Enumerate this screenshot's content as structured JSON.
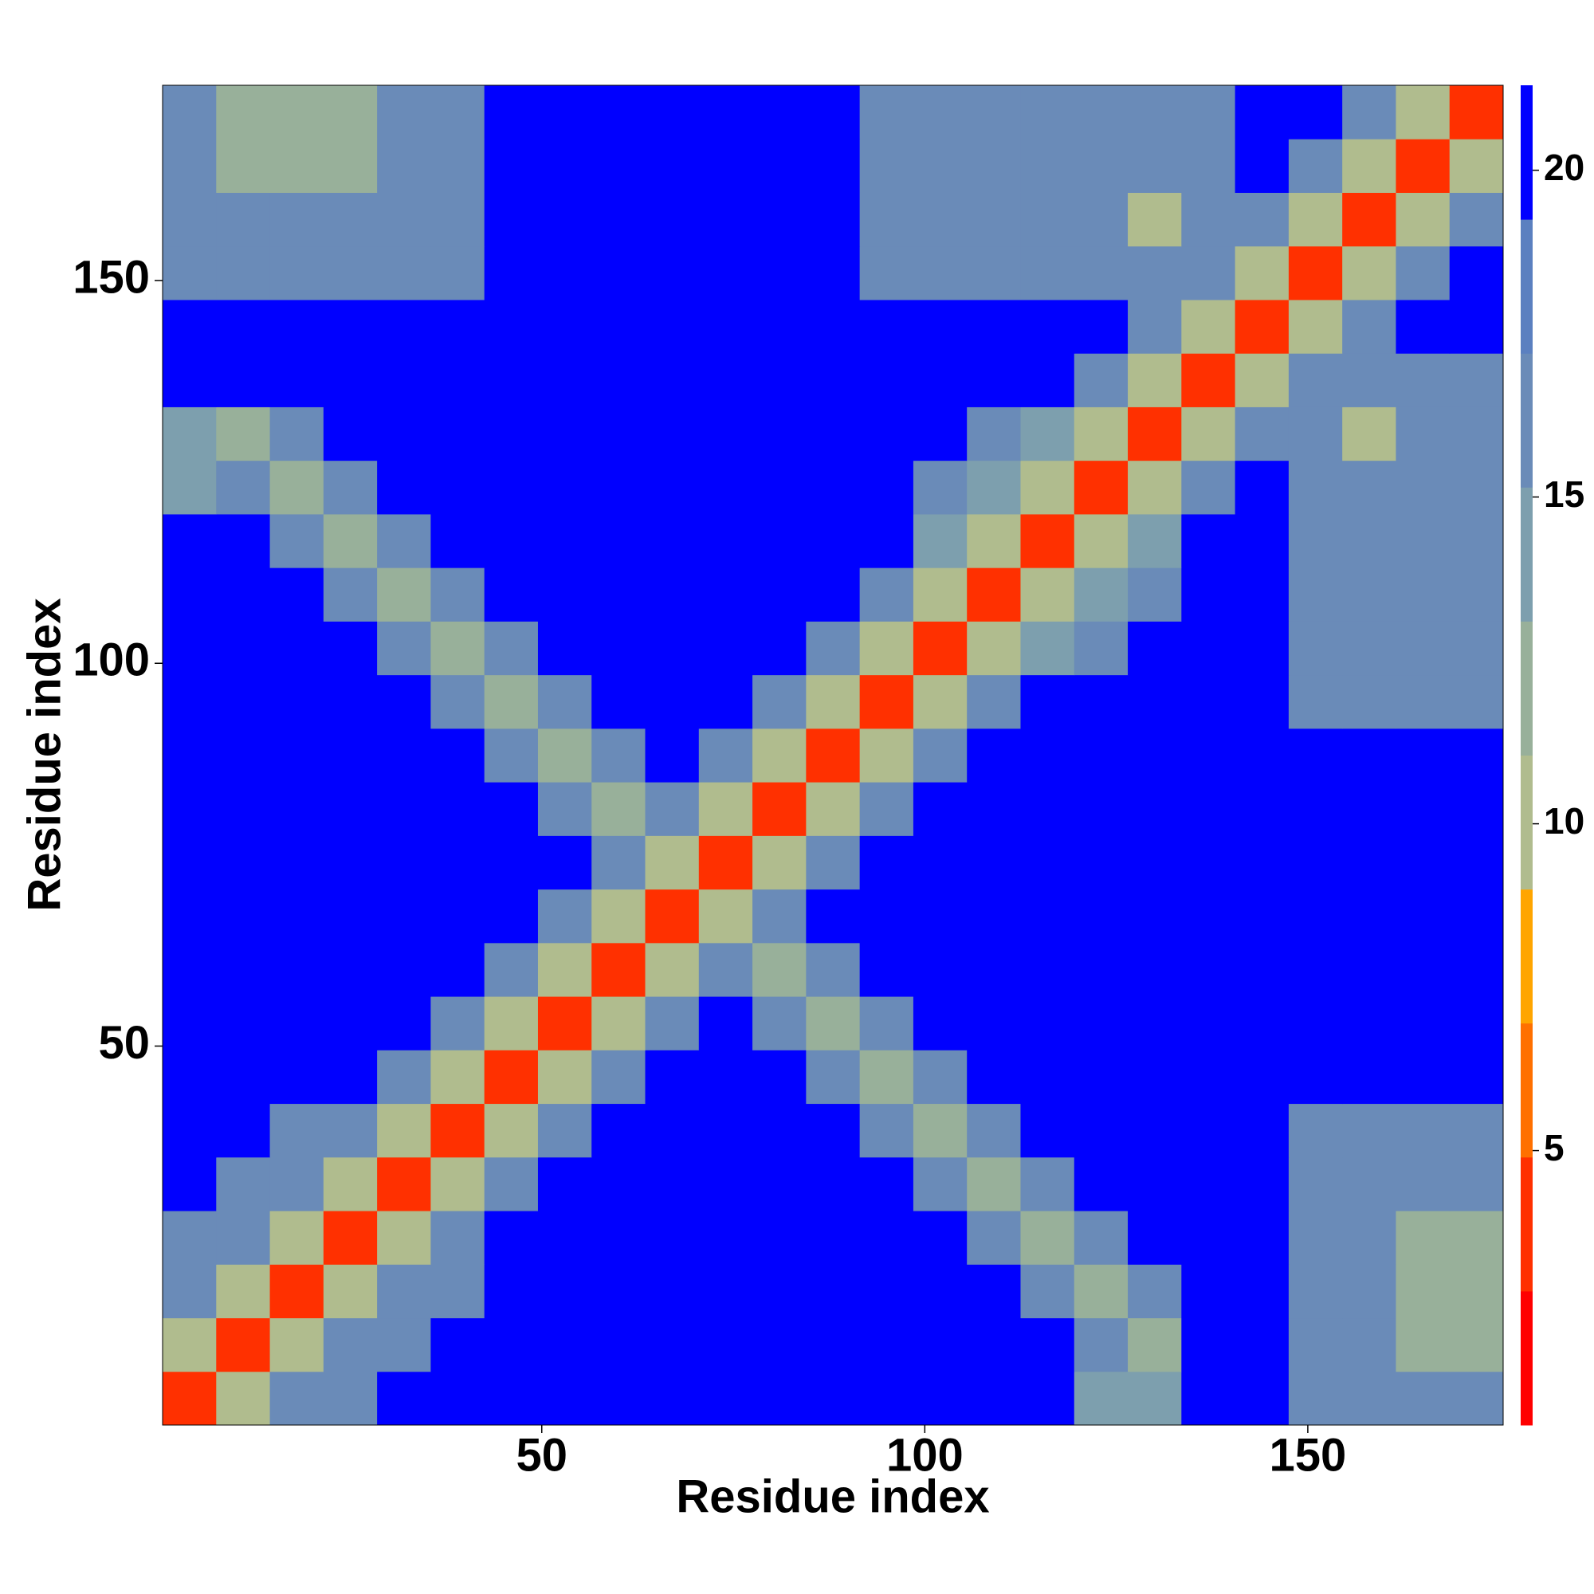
{
  "chart_data": {
    "type": "heatmap",
    "xlabel": "Residue index",
    "ylabel": "Residue index",
    "x_bins": [
      0.5,
      7.5,
      14.5,
      21.5,
      28.5,
      35.5,
      42.5,
      49.5,
      56.5,
      63.5,
      70.5,
      77.5,
      84.5,
      91.5,
      98.5,
      105.5,
      112.5,
      119.5,
      126.5,
      133.5,
      140.5,
      147.5,
      154.5,
      161.5,
      168.5,
      175.5
    ],
    "y_bins": [
      0.5,
      7.5,
      14.5,
      21.5,
      28.5,
      35.5,
      42.5,
      49.5,
      56.5,
      63.5,
      70.5,
      77.5,
      84.5,
      91.5,
      98.5,
      105.5,
      112.5,
      119.5,
      126.5,
      133.5,
      140.5,
      147.5,
      154.5,
      161.5,
      168.5,
      175.5
    ],
    "xlim": [
      0.5,
      175.5
    ],
    "ylim": [
      0.5,
      175.5
    ],
    "xticks": [
      50,
      100,
      150
    ],
    "yticks": [
      50,
      100,
      150
    ],
    "clim": [
      0.8,
      21.3
    ],
    "cticks": [
      5,
      10,
      15,
      20
    ],
    "colormap": [
      "#ff0000",
      "#ff3000",
      "#ff7000",
      "#ffa500",
      "#b0bc8e",
      "#98b09a",
      "#7d9fae",
      "#6a8bb8",
      "#5b80c0",
      "#0000ff"
    ],
    "values": [
      [
        3,
        11,
        17,
        17,
        21,
        21,
        21,
        21,
        21,
        21,
        21,
        21,
        21,
        21,
        21,
        21,
        21,
        15,
        15,
        21,
        21,
        16,
        16,
        16,
        16
      ],
      [
        11,
        3,
        11,
        17,
        17,
        21,
        21,
        21,
        21,
        21,
        21,
        21,
        21,
        21,
        21,
        21,
        21,
        17,
        13,
        21,
        21,
        16,
        16,
        12,
        12
      ],
      [
        17,
        11,
        3,
        11,
        17,
        17,
        21,
        21,
        21,
        21,
        21,
        21,
        21,
        21,
        21,
        21,
        17,
        13,
        17,
        21,
        21,
        16,
        16,
        12,
        12
      ],
      [
        17,
        17,
        11,
        3,
        11,
        17,
        21,
        21,
        21,
        21,
        21,
        21,
        21,
        21,
        21,
        17,
        13,
        17,
        21,
        21,
        21,
        16,
        16,
        12,
        12
      ],
      [
        21,
        17,
        17,
        11,
        3,
        11,
        17,
        21,
        21,
        21,
        21,
        21,
        21,
        21,
        17,
        13,
        17,
        21,
        21,
        21,
        21,
        16,
        16,
        16,
        16
      ],
      [
        21,
        21,
        17,
        17,
        11,
        3,
        11,
        17,
        21,
        21,
        21,
        21,
        21,
        17,
        13,
        17,
        21,
        21,
        21,
        21,
        21,
        16,
        16,
        16,
        16
      ],
      [
        21,
        21,
        21,
        21,
        17,
        11,
        3,
        11,
        17,
        21,
        21,
        21,
        17,
        13,
        17,
        21,
        21,
        21,
        21,
        21,
        21,
        21,
        21,
        21,
        21
      ],
      [
        21,
        21,
        21,
        21,
        21,
        17,
        11,
        3,
        11,
        17,
        21,
        17,
        13,
        17,
        21,
        21,
        21,
        21,
        21,
        21,
        21,
        21,
        21,
        21,
        21
      ],
      [
        21,
        21,
        21,
        21,
        21,
        21,
        17,
        11,
        3,
        11,
        17,
        13,
        17,
        21,
        21,
        21,
        21,
        21,
        21,
        21,
        21,
        21,
        21,
        21,
        21
      ],
      [
        21,
        21,
        21,
        21,
        21,
        21,
        21,
        17,
        11,
        3,
        11,
        17,
        21,
        21,
        21,
        21,
        21,
        21,
        21,
        21,
        21,
        21,
        21,
        21,
        21
      ],
      [
        21,
        21,
        21,
        21,
        21,
        21,
        21,
        21,
        17,
        11,
        3,
        11,
        17,
        21,
        21,
        21,
        21,
        21,
        21,
        21,
        21,
        21,
        21,
        21,
        21
      ],
      [
        21,
        21,
        21,
        21,
        21,
        21,
        21,
        17,
        13,
        17,
        11,
        3,
        11,
        17,
        21,
        21,
        21,
        21,
        21,
        21,
        21,
        21,
        21,
        21,
        21
      ],
      [
        21,
        21,
        21,
        21,
        21,
        21,
        17,
        13,
        17,
        21,
        17,
        11,
        3,
        11,
        17,
        21,
        21,
        21,
        21,
        21,
        21,
        21,
        21,
        21,
        21
      ],
      [
        21,
        21,
        21,
        21,
        21,
        17,
        13,
        17,
        21,
        21,
        21,
        17,
        11,
        3,
        11,
        17,
        21,
        21,
        21,
        21,
        21,
        17,
        17,
        17,
        17
      ],
      [
        21,
        21,
        21,
        21,
        17,
        13,
        17,
        21,
        21,
        21,
        21,
        21,
        17,
        11,
        3,
        11,
        14,
        17,
        21,
        21,
        21,
        17,
        17,
        17,
        17
      ],
      [
        21,
        21,
        21,
        17,
        13,
        17,
        21,
        21,
        21,
        21,
        21,
        21,
        21,
        17,
        11,
        3,
        11,
        14,
        17,
        21,
        21,
        17,
        17,
        17,
        17
      ],
      [
        21,
        21,
        17,
        13,
        17,
        21,
        21,
        21,
        21,
        21,
        21,
        21,
        21,
        21,
        14,
        11,
        3,
        11,
        14,
        21,
        21,
        17,
        17,
        17,
        17
      ],
      [
        15,
        17,
        13,
        17,
        21,
        21,
        21,
        21,
        21,
        21,
        21,
        21,
        21,
        21,
        17,
        14,
        11,
        3,
        11,
        17,
        21,
        17,
        17,
        17,
        17
      ],
      [
        15,
        13,
        17,
        21,
        21,
        21,
        21,
        21,
        21,
        21,
        21,
        21,
        21,
        21,
        21,
        17,
        14,
        11,
        3,
        11,
        17,
        17,
        11,
        17,
        17
      ],
      [
        21,
        21,
        21,
        21,
        21,
        21,
        21,
        21,
        21,
        21,
        21,
        21,
        21,
        21,
        21,
        21,
        21,
        17,
        11,
        3,
        11,
        17,
        17,
        17,
        17
      ],
      [
        21,
        21,
        21,
        21,
        21,
        21,
        21,
        21,
        21,
        21,
        21,
        21,
        21,
        21,
        21,
        21,
        21,
        21,
        17,
        11,
        3,
        11,
        17,
        21,
        21
      ],
      [
        16,
        16,
        16,
        16,
        16,
        16,
        21,
        21,
        21,
        21,
        21,
        21,
        21,
        17,
        17,
        17,
        17,
        17,
        17,
        17,
        11,
        3,
        11,
        17,
        21
      ],
      [
        16,
        16,
        16,
        16,
        16,
        16,
        21,
        21,
        21,
        21,
        21,
        21,
        21,
        17,
        17,
        17,
        17,
        17,
        11,
        17,
        17,
        11,
        3,
        11,
        17
      ],
      [
        16,
        12,
        12,
        12,
        16,
        16,
        21,
        21,
        21,
        21,
        21,
        21,
        21,
        17,
        17,
        17,
        17,
        17,
        17,
        17,
        21,
        17,
        11,
        3,
        11
      ],
      [
        16,
        12,
        12,
        12,
        16,
        16,
        21,
        21,
        21,
        21,
        21,
        21,
        21,
        17,
        17,
        17,
        17,
        17,
        17,
        17,
        21,
        21,
        17,
        11,
        3
      ]
    ]
  }
}
